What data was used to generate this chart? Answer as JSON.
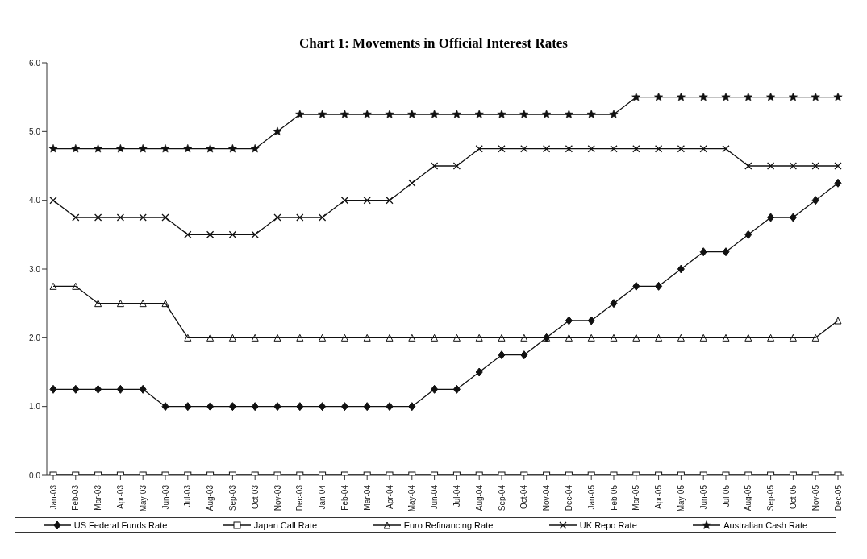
{
  "chart_data": {
    "type": "line",
    "title": "Chart 1: Movements in Official Interest Rates",
    "categories": [
      "Jan-03",
      "Feb-03",
      "Mar-03",
      "Apr-03",
      "May-03",
      "Jun-03",
      "Jul-03",
      "Aug-03",
      "Sep-03",
      "Oct-03",
      "Nov-03",
      "Dec-03",
      "Jan-04",
      "Feb-04",
      "Mar-04",
      "Apr-04",
      "May-04",
      "Jun-04",
      "Jul-04",
      "Aug-04",
      "Sep-04",
      "Oct-04",
      "Nov-04",
      "Dec-04",
      "Jan-05",
      "Feb-05",
      "Mar-05",
      "Apr-05",
      "May-05",
      "Jun-05",
      "Jul-05",
      "Aug-05",
      "Sep-05",
      "Oct-05",
      "Nov-05",
      "Dec-05"
    ],
    "ylim": [
      0,
      6
    ],
    "yticks": [
      {
        "value": 0,
        "label": "0.0"
      },
      {
        "value": 1,
        "label": "1.0"
      },
      {
        "value": 2,
        "label": "2.0"
      },
      {
        "value": 3,
        "label": "3.0"
      },
      {
        "value": 4,
        "label": "4.0"
      },
      {
        "value": 5,
        "label": "5.0"
      },
      {
        "value": 6,
        "label": "6.0"
      }
    ],
    "grid": false,
    "legend": "bottom",
    "line_style": "solid",
    "series": [
      {
        "name": "US Federal Funds Rate",
        "color": "#111111",
        "marker": "diamond",
        "values": [
          1.25,
          1.25,
          1.25,
          1.25,
          1.25,
          1,
          1,
          1,
          1,
          1,
          1,
          1,
          1,
          1,
          1,
          1,
          1,
          1.25,
          1.25,
          1.5,
          1.75,
          1.75,
          2,
          2.25,
          2.25,
          2.5,
          2.75,
          2.75,
          3,
          3.25,
          3.25,
          3.5,
          3.75,
          3.75,
          4,
          4.25
        ]
      },
      {
        "name": "Japan Call Rate",
        "color": "#111111",
        "marker": "square",
        "values": [
          0,
          0,
          0,
          0,
          0,
          0,
          0,
          0,
          0,
          0,
          0,
          0,
          0,
          0,
          0,
          0,
          0,
          0,
          0,
          0,
          0,
          0,
          0,
          0,
          0,
          0,
          0,
          0,
          0,
          0,
          0,
          0,
          0,
          0,
          0,
          0
        ]
      },
      {
        "name": "Euro Refinancing Rate",
        "color": "#111111",
        "marker": "triangle",
        "values": [
          2.75,
          2.75,
          2.5,
          2.5,
          2.5,
          2.5,
          2,
          2,
          2,
          2,
          2,
          2,
          2,
          2,
          2,
          2,
          2,
          2,
          2,
          2,
          2,
          2,
          2,
          2,
          2,
          2,
          2,
          2,
          2,
          2,
          2,
          2,
          2,
          2,
          2,
          2.25
        ]
      },
      {
        "name": "UK Repo Rate",
        "color": "#111111",
        "marker": "cross",
        "values": [
          4,
          3.75,
          3.75,
          3.75,
          3.75,
          3.75,
          3.5,
          3.5,
          3.5,
          3.5,
          3.75,
          3.75,
          3.75,
          4,
          4,
          4,
          4.25,
          4.5,
          4.5,
          4.75,
          4.75,
          4.75,
          4.75,
          4.75,
          4.75,
          4.75,
          4.75,
          4.75,
          4.75,
          4.75,
          4.75,
          4.5,
          4.5,
          4.5,
          4.5,
          4.5
        ]
      },
      {
        "name": "Australian Cash Rate",
        "color": "#111111",
        "marker": "star",
        "values": [
          4.75,
          4.75,
          4.75,
          4.75,
          4.75,
          4.75,
          4.75,
          4.75,
          4.75,
          4.75,
          5,
          5.25,
          5.25,
          5.25,
          5.25,
          5.25,
          5.25,
          5.25,
          5.25,
          5.25,
          5.25,
          5.25,
          5.25,
          5.25,
          5.25,
          5.25,
          5.5,
          5.5,
          5.5,
          5.5,
          5.5,
          5.5,
          5.5,
          5.5,
          5.5,
          5.5
        ]
      }
    ]
  }
}
